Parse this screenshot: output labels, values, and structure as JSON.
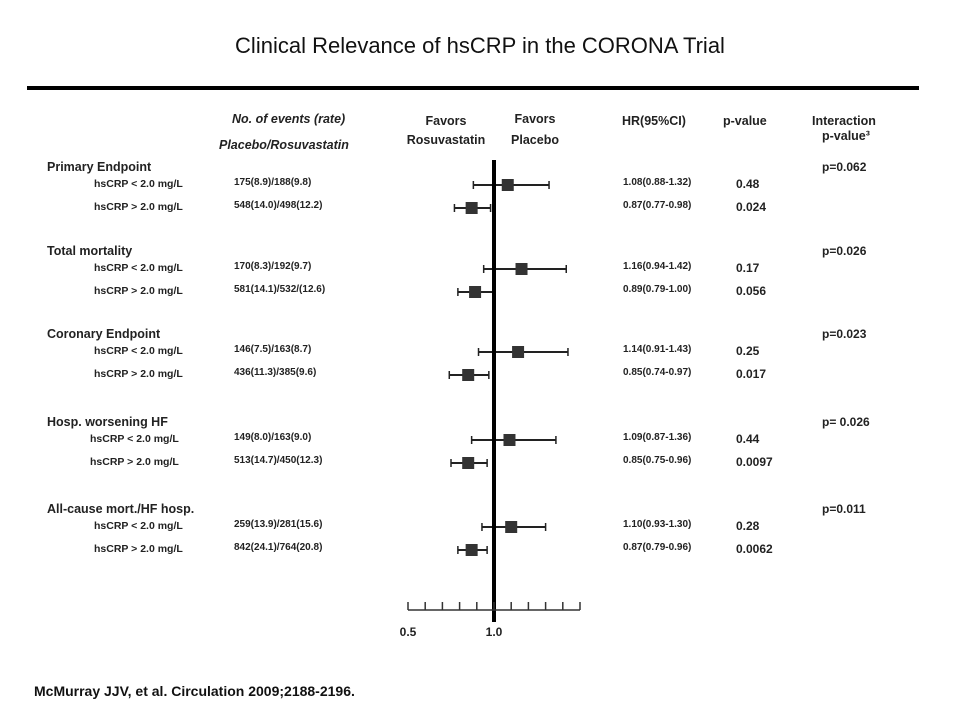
{
  "title": "Clinical Relevance of hsCRP in the CORONA Trial",
  "headers": {
    "events_line1": "No. of events (rate)",
    "events_line2": "Placebo/Rosuvastatin",
    "favors_left_1": "Favors",
    "favors_left_2": "Rosuvastatin",
    "favors_right_1": "Favors",
    "favors_right_2": "Placebo",
    "hr": "HR(95%CI)",
    "pvalue": "p-value",
    "interaction_1": "Interaction",
    "interaction_2": "p-value³"
  },
  "citation": "McMurray JJV, et al.  Circulation 2009;2188-2196.",
  "chart_data": {
    "type": "forest",
    "reference_line": 1.0,
    "x_ticks": [
      0.5,
      1.0
    ],
    "x_tick_labels": [
      "0.5",
      "1.0"
    ],
    "xlim": [
      0.5,
      1.5
    ],
    "groups": [
      {
        "name": "Primary Endpoint",
        "interaction_p": "p=0.062",
        "rows": [
          {
            "label": "hsCRP < 2.0 mg/L",
            "events": "175(8.9)/188(9.8)",
            "hr_text": "1.08(0.88-1.32)",
            "p": "0.48",
            "hr": 1.08,
            "lo": 0.88,
            "hi": 1.32
          },
          {
            "label": "hsCRP > 2.0 mg/L",
            "events": "548(14.0)/498(12.2)",
            "hr_text": "0.87(0.77-0.98)",
            "p": "0.024",
            "hr": 0.87,
            "lo": 0.77,
            "hi": 0.98
          }
        ]
      },
      {
        "name": "Total mortality",
        "interaction_p": "p=0.026",
        "rows": [
          {
            "label": "hsCRP < 2.0 mg/L",
            "events": "170(8.3)/192(9.7)",
            "hr_text": "1.16(0.94-1.42)",
            "p": "0.17",
            "hr": 1.16,
            "lo": 0.94,
            "hi": 1.42
          },
          {
            "label": "hsCRP > 2.0 mg/L",
            "events": "581(14.1)/532/(12.6)",
            "hr_text": "0.89(0.79-1.00)",
            "p": "0.056",
            "hr": 0.89,
            "lo": 0.79,
            "hi": 1.0
          }
        ]
      },
      {
        "name": "Coronary Endpoint",
        "interaction_p": "p=0.023",
        "rows": [
          {
            "label": "hsCRP < 2.0 mg/L",
            "events": "146(7.5)/163(8.7)",
            "hr_text": "1.14(0.91-1.43)",
            "p": "0.25",
            "hr": 1.14,
            "lo": 0.91,
            "hi": 1.43
          },
          {
            "label": "hsCRP > 2.0 mg/L",
            "events": "436(11.3)/385(9.6)",
            "hr_text": "0.85(0.74-0.97)",
            "p": "0.017",
            "hr": 0.85,
            "lo": 0.74,
            "hi": 0.97
          }
        ]
      },
      {
        "name": "Hosp. worsening HF",
        "interaction_p": "p= 0.026",
        "rows": [
          {
            "label": "hsCRP < 2.0 mg/L",
            "events": "149(8.0)/163(9.0)",
            "hr_text": "1.09(0.87-1.36)",
            "p": "0.44",
            "hr": 1.09,
            "lo": 0.87,
            "hi": 1.36
          },
          {
            "label": "hsCRP > 2.0 mg/L",
            "events": "513(14.7)/450(12.3)",
            "hr_text": "0.85(0.75-0.96)",
            "p": "0.0097",
            "hr": 0.85,
            "lo": 0.75,
            "hi": 0.96
          }
        ]
      },
      {
        "name": "All-cause mort./HF hosp.",
        "interaction_p": "p=0.011",
        "rows": [
          {
            "label": "hsCRP < 2.0 mg/L",
            "events": "259(13.9)/281(15.6)",
            "hr_text": "1.10(0.93-1.30)",
            "p": "0.28",
            "hr": 1.1,
            "lo": 0.93,
            "hi": 1.3
          },
          {
            "label": "hsCRP > 2.0 mg/L",
            "events": "842(24.1)/764(20.8)",
            "hr_text": "0.87(0.79-0.96)",
            "p": "0.0062",
            "hr": 0.87,
            "lo": 0.79,
            "hi": 0.96
          }
        ]
      }
    ]
  }
}
